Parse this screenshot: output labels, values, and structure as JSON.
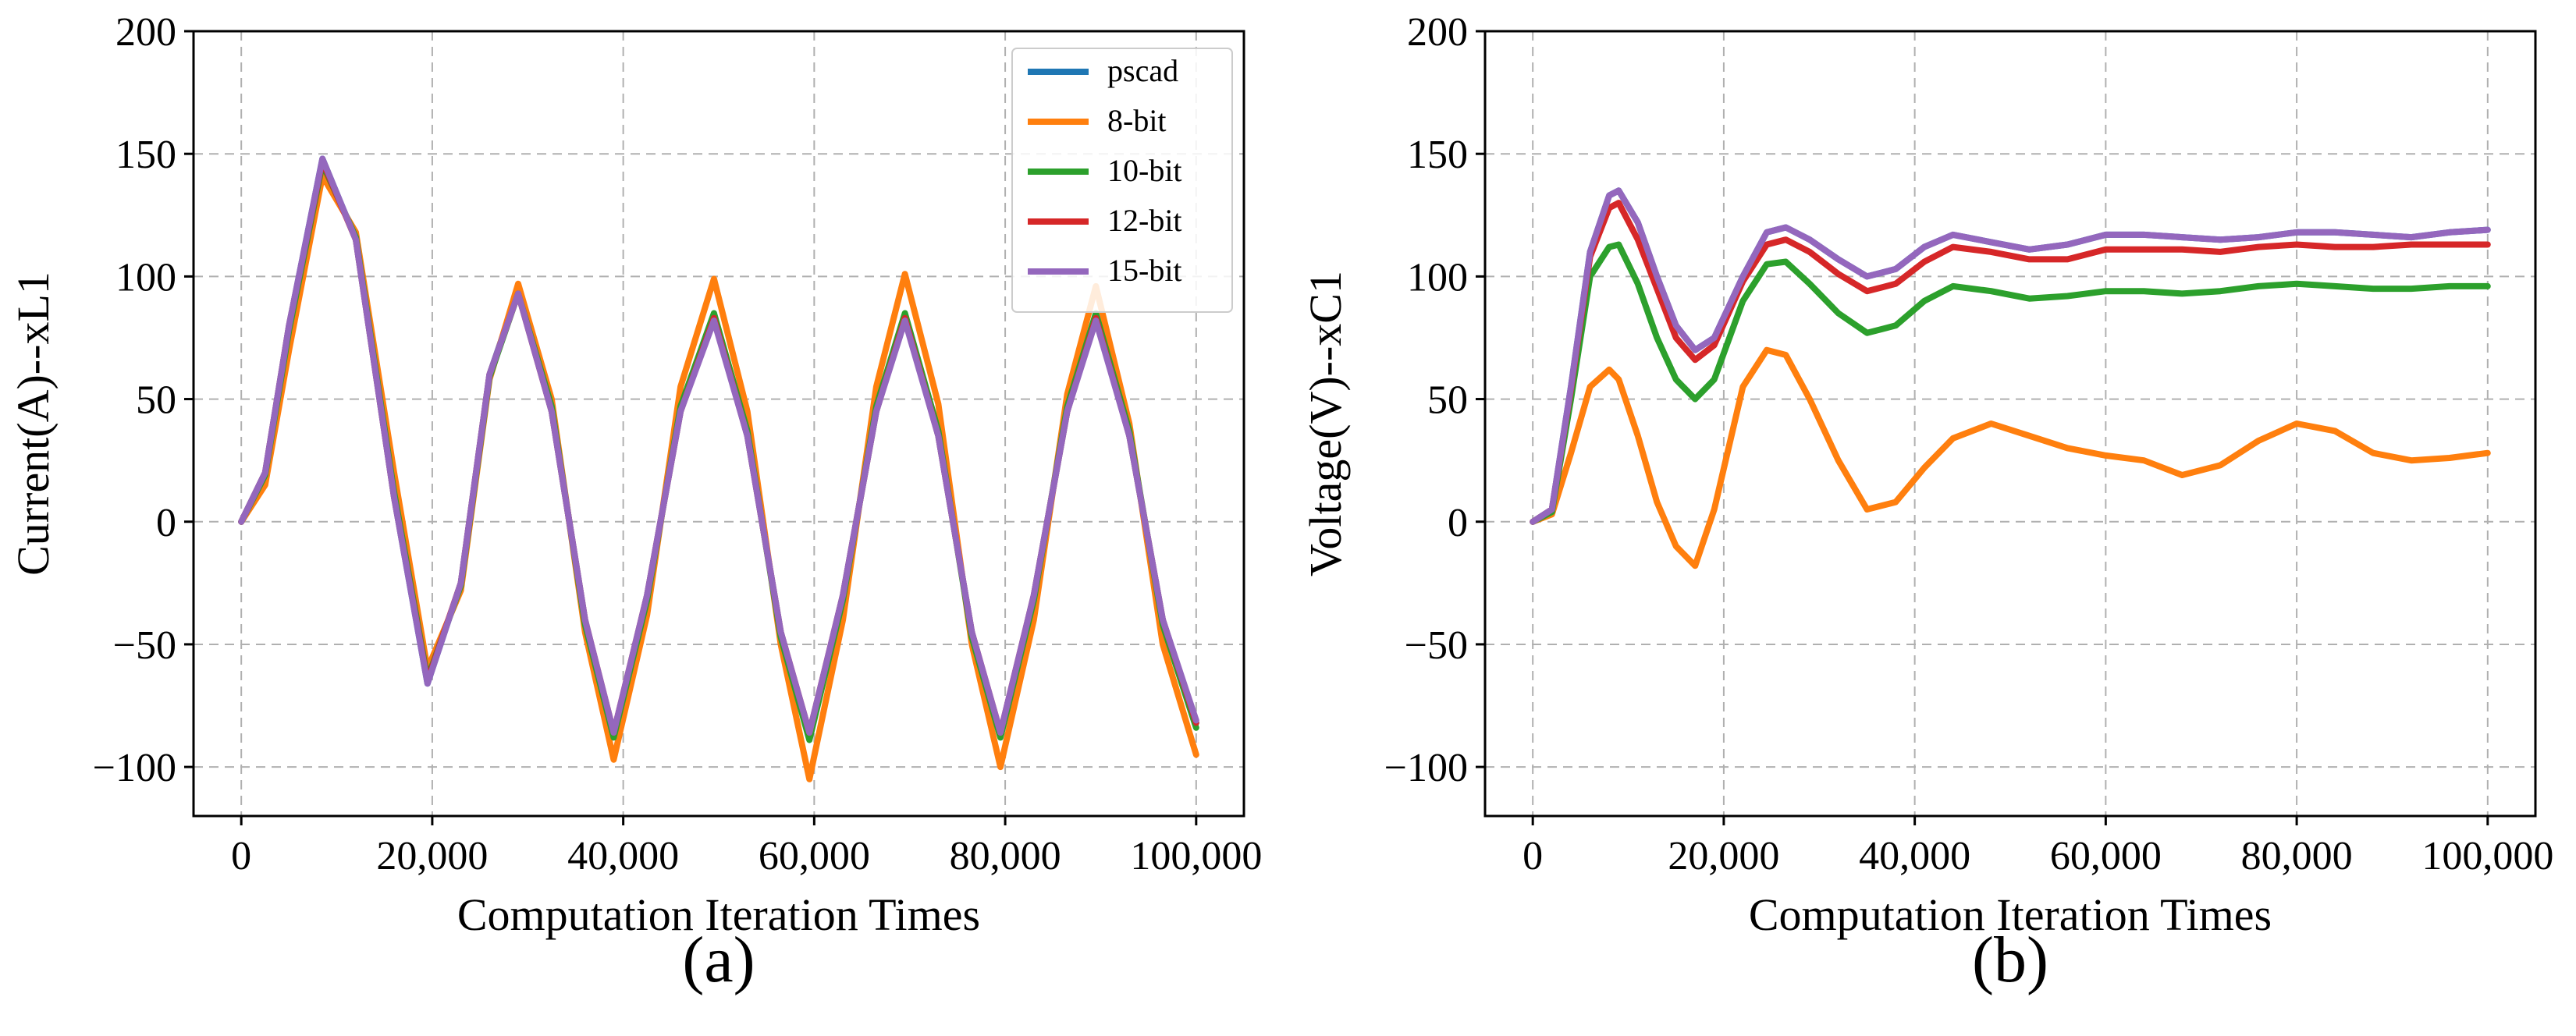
{
  "chart_data": [
    {
      "type": "line",
      "panel_label": "(a)",
      "title": "",
      "xlabel": "Computation Iteration Times",
      "ylabel": "Current(A)--xL1",
      "xlim": [
        -5000,
        105000
      ],
      "ylim": [
        -120,
        200
      ],
      "xticks": [
        0,
        20000,
        40000,
        60000,
        80000,
        100000
      ],
      "xtick_labels": [
        "0",
        "20,000",
        "40,000",
        "60,000",
        "80,000",
        "100,000"
      ],
      "yticks": [
        -100,
        -50,
        0,
        50,
        100,
        150,
        200
      ],
      "ytick_labels": [
        "−100",
        "−50",
        "0",
        "50",
        "100",
        "150",
        "200"
      ],
      "grid": true,
      "legend": "top-right",
      "x": [
        0,
        2500,
        5000,
        8500,
        12000,
        16000,
        19500,
        23000,
        26000,
        29000,
        32500,
        36000,
        39000,
        42500,
        46000,
        49500,
        53000,
        56500,
        59500,
        63000,
        66500,
        69500,
        73000,
        76500,
        79500,
        83000,
        86500,
        89500,
        93000,
        96500,
        100000
      ],
      "series": [
        {
          "name": "pscad",
          "color": "#1f77b4",
          "values": [
            0,
            20,
            80,
            148,
            115,
            10,
            -66,
            -25,
            60,
            94,
            45,
            -40,
            -87,
            -30,
            45,
            84,
            35,
            -45,
            -87,
            -30,
            45,
            84,
            35,
            -45,
            -87,
            -30,
            45,
            84,
            35,
            -40,
            -82
          ]
        },
        {
          "name": "8-bit",
          "color": "#ff7f0e",
          "values": [
            0,
            15,
            70,
            141,
            118,
            20,
            -60,
            -28,
            58,
            97,
            50,
            -45,
            -97,
            -38,
            55,
            99,
            45,
            -50,
            -105,
            -40,
            55,
            101,
            48,
            -50,
            -100,
            -40,
            52,
            96,
            40,
            -50,
            -95
          ]
        },
        {
          "name": "10-bit",
          "color": "#2ca02c",
          "values": [
            0,
            19,
            78,
            146,
            116,
            12,
            -64,
            -26,
            59,
            93,
            47,
            -42,
            -88,
            -32,
            47,
            85,
            37,
            -47,
            -89,
            -32,
            47,
            85,
            37,
            -47,
            -88,
            -32,
            47,
            85,
            37,
            -42,
            -84
          ]
        },
        {
          "name": "12-bit",
          "color": "#d62728",
          "values": [
            0,
            20,
            80,
            147,
            115,
            10,
            -65,
            -25,
            60,
            93,
            45,
            -40,
            -86,
            -30,
            45,
            83,
            35,
            -45,
            -86,
            -30,
            45,
            83,
            35,
            -45,
            -86,
            -30,
            45,
            83,
            35,
            -40,
            -82
          ]
        },
        {
          "name": "15-bit",
          "color": "#9467bd",
          "values": [
            0,
            20,
            80,
            148,
            115,
            10,
            -66,
            -25,
            60,
            93,
            45,
            -40,
            -86,
            -30,
            45,
            82,
            35,
            -45,
            -86,
            -30,
            45,
            82,
            35,
            -45,
            -86,
            -30,
            45,
            82,
            35,
            -40,
            -81
          ]
        }
      ]
    },
    {
      "type": "line",
      "panel_label": "(b)",
      "title": "",
      "xlabel": "Computation Iteration Times",
      "ylabel": "Voltage(V)--xC1",
      "xlim": [
        -5000,
        105000
      ],
      "ylim": [
        -120,
        200
      ],
      "xticks": [
        0,
        20000,
        40000,
        60000,
        80000,
        100000
      ],
      "xtick_labels": [
        "0",
        "20,000",
        "40,000",
        "60,000",
        "80,000",
        "100,000"
      ],
      "yticks": [
        -100,
        -50,
        0,
        50,
        100,
        150,
        200
      ],
      "ytick_labels": [
        "−100",
        "−50",
        "0",
        "50",
        "100",
        "150",
        "200"
      ],
      "grid": true,
      "legend": "none",
      "x": [
        0,
        2000,
        4000,
        6000,
        8000,
        9000,
        11000,
        13000,
        15000,
        17000,
        19000,
        22000,
        24500,
        26500,
        29000,
        32000,
        35000,
        38000,
        41000,
        44000,
        48000,
        52000,
        56000,
        60000,
        64000,
        68000,
        72000,
        76000,
        80000,
        84000,
        88000,
        92000,
        96000,
        100000
      ],
      "series": [
        {
          "name": "pscad",
          "color": "#1f77b4",
          "values": [
            0,
            5,
            55,
            110,
            133,
            135,
            122,
            100,
            80,
            70,
            75,
            100,
            118,
            120,
            115,
            107,
            100,
            103,
            112,
            117,
            114,
            111,
            113,
            117,
            117,
            116,
            115,
            116,
            118,
            118,
            117,
            116,
            118,
            119
          ]
        },
        {
          "name": "8-bit",
          "color": "#ff7f0e",
          "values": [
            0,
            3,
            28,
            55,
            62,
            58,
            35,
            8,
            -10,
            -18,
            5,
            55,
            70,
            68,
            50,
            25,
            5,
            8,
            22,
            34,
            40,
            35,
            30,
            27,
            25,
            19,
            23,
            33,
            40,
            37,
            28,
            25,
            26,
            28
          ]
        },
        {
          "name": "10-bit",
          "color": "#2ca02c",
          "values": [
            0,
            4,
            50,
            100,
            112,
            113,
            97,
            75,
            58,
            50,
            58,
            90,
            105,
            106,
            97,
            85,
            77,
            80,
            90,
            96,
            94,
            91,
            92,
            94,
            94,
            93,
            94,
            96,
            97,
            96,
            95,
            95,
            96,
            96
          ]
        },
        {
          "name": "12-bit",
          "color": "#d62728",
          "values": [
            0,
            5,
            54,
            108,
            128,
            130,
            115,
            95,
            75,
            66,
            72,
            98,
            113,
            115,
            110,
            101,
            94,
            97,
            106,
            112,
            110,
            107,
            107,
            111,
            111,
            111,
            110,
            112,
            113,
            112,
            112,
            113,
            113,
            113
          ]
        },
        {
          "name": "15-bit",
          "color": "#9467bd",
          "values": [
            0,
            5,
            55,
            110,
            133,
            135,
            122,
            100,
            80,
            70,
            75,
            100,
            118,
            120,
            115,
            107,
            100,
            103,
            112,
            117,
            114,
            111,
            113,
            117,
            117,
            116,
            115,
            116,
            118,
            118,
            117,
            116,
            118,
            119
          ]
        }
      ]
    }
  ]
}
